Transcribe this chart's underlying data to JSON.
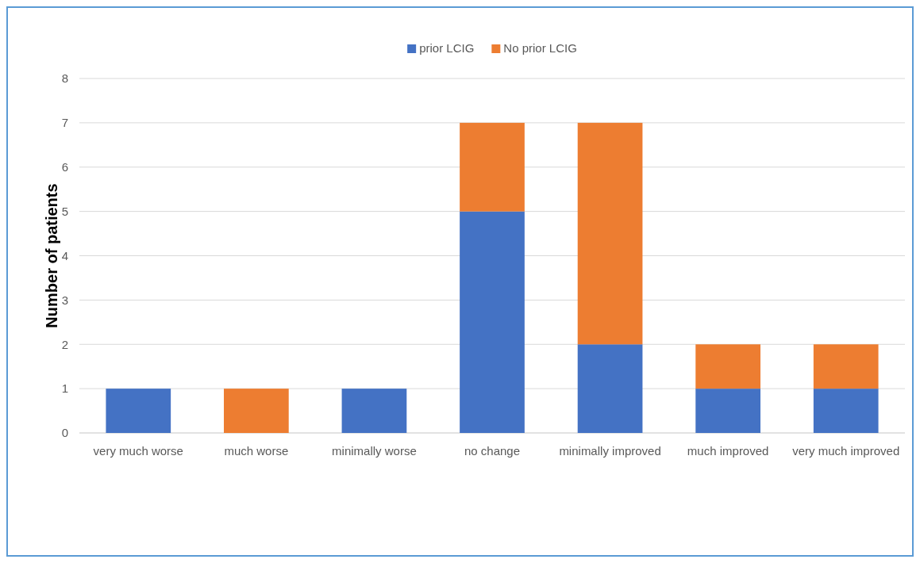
{
  "chart_data": {
    "type": "bar",
    "stacked": true,
    "ylabel": "Number of patients",
    "categories": [
      "very much worse",
      "much worse",
      "minimally worse",
      "no change",
      "minimally improved",
      "much improved",
      "very much improved"
    ],
    "series": [
      {
        "name": "prior LCIG",
        "color": "#4472c4",
        "values": [
          1,
          0,
          1,
          5,
          2,
          1,
          1
        ]
      },
      {
        "name": "No prior LCIG",
        "color": "#ed7d31",
        "values": [
          0,
          1,
          0,
          2,
          5,
          1,
          1
        ]
      }
    ],
    "ylim": [
      0,
      8
    ],
    "yticks": [
      0,
      1,
      2,
      3,
      4,
      5,
      6,
      7,
      8
    ],
    "grid": "y",
    "legend": "top"
  }
}
